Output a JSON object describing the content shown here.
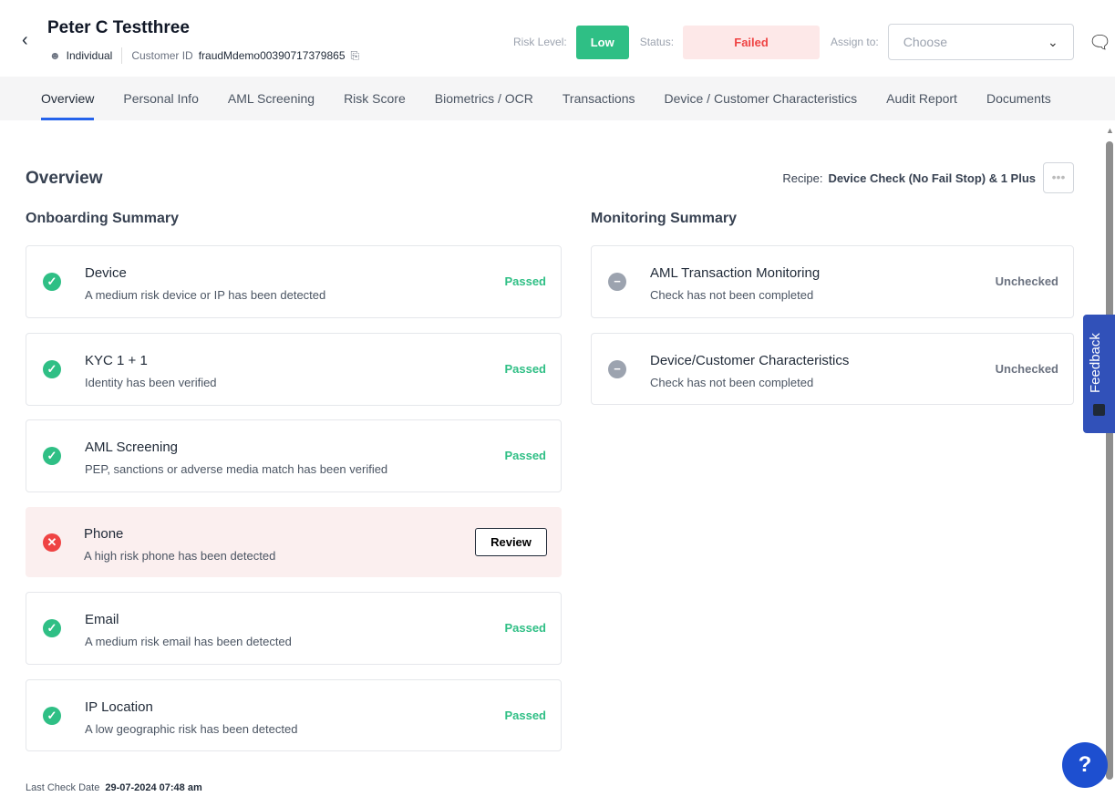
{
  "header": {
    "name": "Peter C Testthree",
    "type": "Individual",
    "customer_id_label": "Customer ID",
    "customer_id": "fraudMdemo00390717379865",
    "risk_label": "Risk Level:",
    "risk": "Low",
    "status_label": "Status:",
    "status": "Failed",
    "assign_label": "Assign to:",
    "assign_placeholder": "Choose"
  },
  "tabs": [
    "Overview",
    "Personal Info",
    "AML Screening",
    "Risk Score",
    "Biometrics / OCR",
    "Transactions",
    "Device / Customer Characteristics",
    "Audit Report",
    "Documents"
  ],
  "overview": {
    "title": "Overview",
    "recipe_label": "Recipe:",
    "recipe": "Device Check (No Fail Stop) & 1 Plus",
    "more": "•••"
  },
  "onboarding": {
    "title": "Onboarding Summary",
    "items": [
      {
        "title": "Device",
        "desc": "A medium risk device or IP has been detected",
        "status": "Passed"
      },
      {
        "title": "KYC 1 + 1",
        "desc": "Identity has been verified",
        "status": "Passed"
      },
      {
        "title": "AML Screening",
        "desc": "PEP, sanctions or adverse media match has been verified",
        "status": "Passed"
      },
      {
        "title": "Phone",
        "desc": "A high risk phone has been detected",
        "action": "Review"
      },
      {
        "title": "Email",
        "desc": "A medium risk email has been detected",
        "status": "Passed"
      },
      {
        "title": "IP Location",
        "desc": "A low geographic risk has been detected",
        "status": "Passed"
      }
    ]
  },
  "monitoring": {
    "title": "Monitoring Summary",
    "items": [
      {
        "title": "AML Transaction Monitoring",
        "desc": "Check has not been completed",
        "status": "Unchecked"
      },
      {
        "title": "Device/Customer Characteristics",
        "desc": "Check has not been completed",
        "status": "Unchecked"
      }
    ]
  },
  "footer": {
    "last_check_label": "Last Check Date",
    "last_check": "29-07-2024 07:48 am"
  },
  "feedback": "Feedback",
  "help": "?"
}
